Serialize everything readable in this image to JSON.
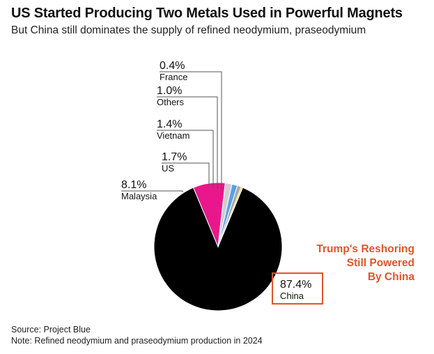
{
  "header": {
    "title": "US Started Producing Two Metals Used in Powerful Magnets",
    "subtitle": "But China still dominates the supply of refined neodymium, praseodymium"
  },
  "chart_data": {
    "type": "pie",
    "title": "US Started Producing Two Metals Used in Powerful Magnets",
    "subtitle": "But China still dominates the supply of refined neodymium, praseodymium",
    "slices": [
      {
        "label": "China",
        "value": 87.4,
        "display": "87.4%",
        "color": "#000000"
      },
      {
        "label": "Malaysia",
        "value": 8.1,
        "display": "8.1%",
        "color": "#e8188c"
      },
      {
        "label": "US",
        "value": 1.7,
        "display": "1.7%",
        "color": "#cfcfcf"
      },
      {
        "label": "Vietnam",
        "value": 1.4,
        "display": "1.4%",
        "color": "#5aa0e6"
      },
      {
        "label": "Others",
        "value": 1.0,
        "display": "1.0%",
        "color": "#a9a9a9"
      },
      {
        "label": "France",
        "value": 0.4,
        "display": "0.4%",
        "color": "#e6d531"
      }
    ]
  },
  "annotation": {
    "lines": [
      "Trump's Reshoring",
      "Still Powered",
      "By China"
    ],
    "color": "#e0542b"
  },
  "footer": {
    "source": "Source: Project Blue",
    "note": "Note: Refined neodymium and praseodymium production in 2024"
  }
}
